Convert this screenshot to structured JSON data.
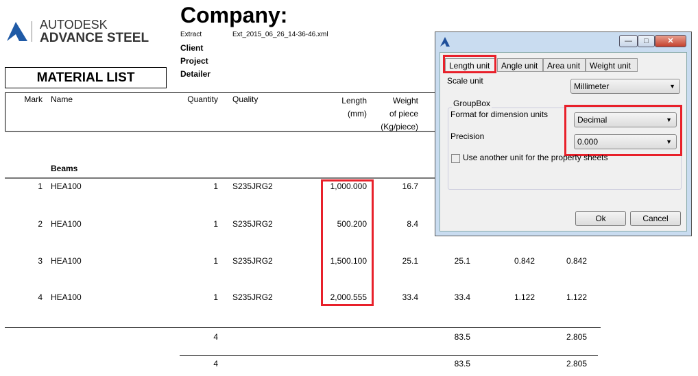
{
  "logo": {
    "line1": "AUTODESK",
    "line2": "ADVANCE STEEL"
  },
  "header": {
    "company": "Company:",
    "extract_label": "Extract",
    "extract_value": "Ext_2015_06_26_14-36-46.xml",
    "client": "Client",
    "project": "Project",
    "detailer": "Detailer",
    "list_title": "MATERIAL LIST"
  },
  "table": {
    "columns": {
      "mark": "Mark",
      "name": "Name",
      "quantity": "Quantity",
      "quality": "Quality",
      "length1": "Length",
      "length2": "(mm)",
      "weight1": "Weight",
      "weight2": "of piece",
      "weight3": "(Kg/piece)"
    },
    "group": "Beams",
    "rows": [
      {
        "mark": "1",
        "name": "HEA100",
        "quantity": "1",
        "quality": "S235JRG2",
        "length": "1,000.000",
        "weight": "16.7",
        "c7": "",
        "c8": "",
        "c9": ""
      },
      {
        "mark": "2",
        "name": "HEA100",
        "quantity": "1",
        "quality": "S235JRG2",
        "length": "500.200",
        "weight": "8.4",
        "c7": "",
        "c8": "",
        "c9": ""
      },
      {
        "mark": "3",
        "name": "HEA100",
        "quantity": "1",
        "quality": "S235JRG2",
        "length": "1,500.100",
        "weight": "25.1",
        "c7": "25.1",
        "c8": "0.842",
        "c9": "0.842"
      },
      {
        "mark": "4",
        "name": "HEA100",
        "quantity": "1",
        "quality": "S235JRG2",
        "length": "2,000.555",
        "weight": "33.4",
        "c7": "33.4",
        "c8": "1.122",
        "c9": "1.122"
      }
    ],
    "subtotal": {
      "quantity": "4",
      "weight": "83.5",
      "area": "2.805"
    },
    "total": {
      "quantity": "4",
      "weight": "83.5",
      "area": "2.805"
    }
  },
  "dialog": {
    "tabs": [
      "Length unit",
      "Angle unit",
      "Area unit",
      "Weight unit"
    ],
    "active_tab": "Length unit",
    "scale_label": "Scale unit",
    "scale_value": "Millimeter",
    "group_label": "GroupBox",
    "format_label": "Format for dimension units",
    "format_value": "Decimal",
    "precision_label": "Precision",
    "precision_value": "0.000",
    "checkbox_label": "Use another unit for the property sheets",
    "checkbox_checked": false,
    "ok": "Ok",
    "cancel": "Cancel",
    "highlight_color": "#e8202a"
  }
}
